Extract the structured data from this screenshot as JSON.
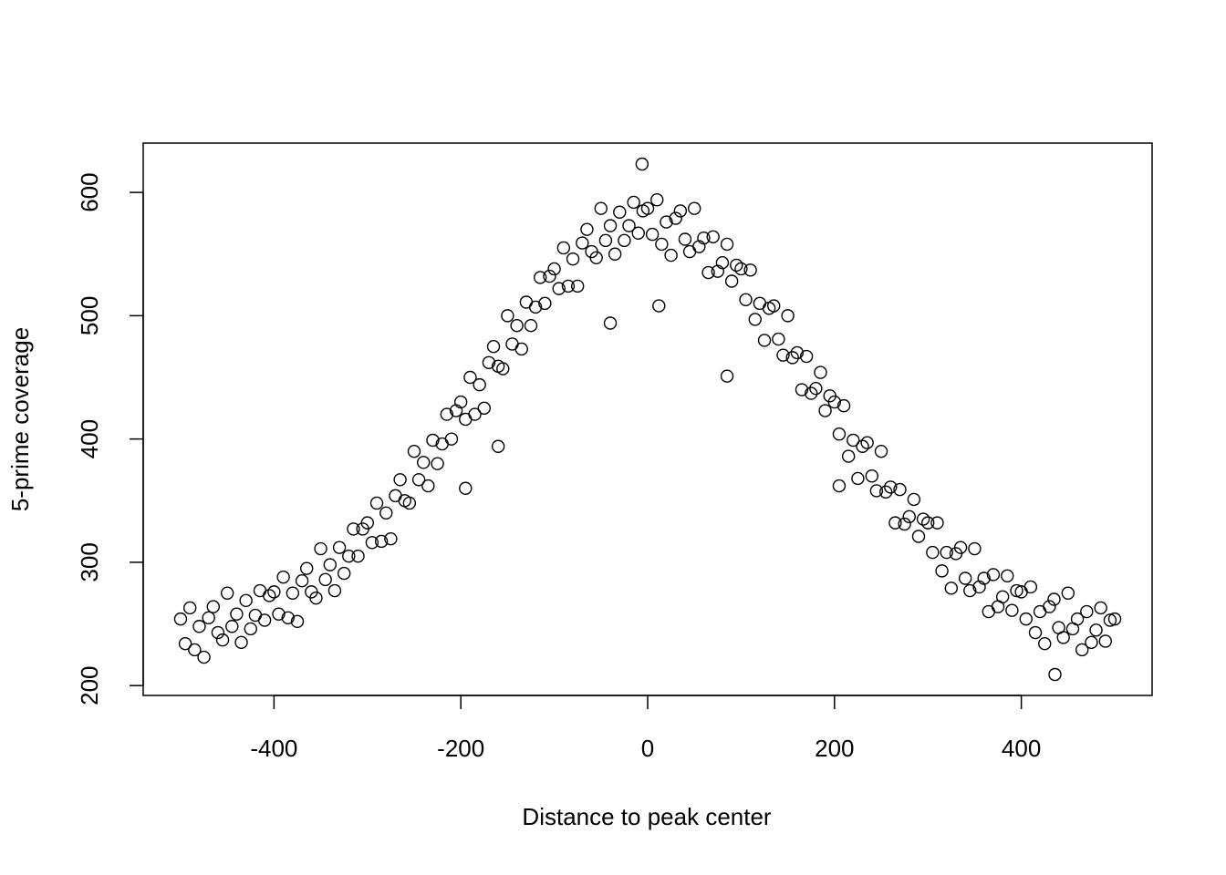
{
  "chart_data": {
    "type": "scatter",
    "x_label": "Distance to peak center",
    "y_label": "5-prime coverage",
    "xlim": [
      -540,
      540
    ],
    "ylim": [
      192,
      640
    ],
    "xticks": [
      -400,
      -200,
      0,
      200,
      400
    ],
    "yticks": [
      200,
      300,
      400,
      500,
      600
    ],
    "grid": false,
    "color": "#000000",
    "x": [
      -500,
      -495,
      -490,
      -485,
      -480,
      -475,
      -470,
      -465,
      -460,
      -455,
      -450,
      -445,
      -440,
      -435,
      -430,
      -425,
      -420,
      -415,
      -410,
      -405,
      -400,
      -395,
      -390,
      -385,
      -380,
      -375,
      -370,
      -365,
      -360,
      -355,
      -350,
      -345,
      -340,
      -335,
      -330,
      -325,
      -320,
      -315,
      -310,
      -305,
      -300,
      -295,
      -290,
      -285,
      -280,
      -275,
      -270,
      -265,
      -260,
      -255,
      -250,
      -245,
      -240,
      -235,
      -230,
      -225,
      -220,
      -215,
      -210,
      -205,
      -200,
      -195,
      -190,
      -185,
      -180,
      -175,
      -170,
      -165,
      -160,
      -155,
      -150,
      -145,
      -140,
      -135,
      -130,
      -125,
      -120,
      -115,
      -110,
      -105,
      -100,
      -95,
      -90,
      -85,
      -80,
      -75,
      -70,
      -65,
      -60,
      -55,
      -50,
      -45,
      -40,
      -35,
      -30,
      -25,
      -20,
      -15,
      -10,
      -5,
      0,
      5,
      10,
      15,
      20,
      25,
      30,
      35,
      40,
      45,
      50,
      55,
      60,
      65,
      70,
      75,
      80,
      85,
      90,
      95,
      100,
      105,
      110,
      115,
      120,
      125,
      130,
      135,
      140,
      145,
      150,
      155,
      160,
      165,
      170,
      175,
      180,
      185,
      190,
      195,
      200,
      205,
      210,
      215,
      220,
      225,
      230,
      235,
      240,
      245,
      250,
      255,
      260,
      265,
      270,
      275,
      280,
      285,
      290,
      295,
      300,
      305,
      310,
      315,
      320,
      325,
      330,
      335,
      340,
      345,
      350,
      355,
      360,
      365,
      370,
      375,
      380,
      385,
      390,
      395,
      400,
      405,
      410,
      415,
      420,
      425,
      430,
      435,
      440,
      445,
      450,
      455,
      460,
      465,
      470,
      475,
      480,
      485,
      490,
      495,
      500,
      -6,
      436,
      -195,
      -160,
      85,
      205,
      12,
      -40
    ],
    "values": [
      254,
      234,
      263,
      229,
      248,
      223,
      255,
      264,
      243,
      237,
      275,
      248,
      258,
      235,
      269,
      246,
      257,
      277,
      253,
      273,
      276,
      258,
      288,
      255,
      275,
      252,
      285,
      295,
      276,
      271,
      311,
      286,
      298,
      277,
      312,
      291,
      305,
      327,
      305,
      327,
      332,
      316,
      348,
      317,
      340,
      319,
      354,
      367,
      350,
      348,
      390,
      367,
      381,
      362,
      399,
      380,
      396,
      420,
      400,
      423,
      430,
      416,
      450,
      420,
      444,
      425,
      462,
      475,
      459,
      457,
      500,
      477,
      492,
      473,
      511,
      492,
      507,
      531,
      510,
      532,
      538,
      522,
      555,
      524,
      546,
      524,
      559,
      570,
      552,
      547,
      587,
      561,
      573,
      550,
      584,
      561,
      573,
      592,
      567,
      585,
      587,
      566,
      594,
      558,
      576,
      549,
      579,
      585,
      562,
      552,
      587,
      556,
      563,
      535,
      564,
      536,
      543,
      558,
      528,
      541,
      538,
      513,
      537,
      497,
      510,
      480,
      506,
      508,
      481,
      468,
      500,
      466,
      470,
      440,
      467,
      437,
      441,
      454,
      423,
      435,
      430,
      404,
      427,
      386,
      399,
      368,
      394,
      397,
      370,
      358,
      390,
      357,
      361,
      332,
      359,
      331,
      337,
      351,
      321,
      335,
      332,
      308,
      332,
      293,
      308,
      279,
      307,
      312,
      287,
      277,
      311,
      280,
      287,
      260,
      290,
      264,
      272,
      289,
      261,
      277,
      276,
      254,
      280,
      243,
      260,
      234,
      264,
      270,
      247,
      239,
      275,
      246,
      254,
      229,
      260,
      235,
      245,
      263,
      236,
      253,
      254,
      623,
      209,
      360,
      394,
      451,
      362,
      508,
      494
    ]
  }
}
